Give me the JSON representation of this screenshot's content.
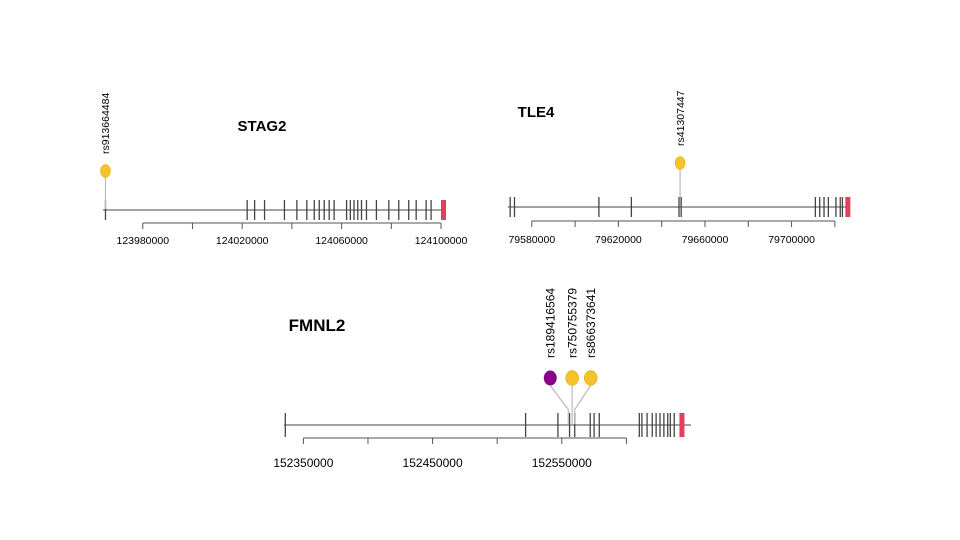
{
  "colors": {
    "exon": "#444444",
    "backbone": "#444444",
    "terminal_exon": "#e0405e",
    "snp_yellow": "#f5c22a",
    "snp_purple": "#8b008b",
    "stem": "#bbbbbb",
    "axis": "#555555"
  },
  "genes": [
    {
      "id": "stag2",
      "name": "STAG2",
      "range": [
        123964000,
        124102000
      ],
      "tick_values": [
        123980000,
        124000000,
        124020000,
        124040000,
        124060000,
        124080000,
        124100000
      ],
      "tick_labels": [
        "123980000",
        "",
        "124020000",
        "",
        "124060000",
        "",
        "124100000"
      ],
      "exons": [
        123965000,
        124022000,
        124025000,
        124029000,
        124037000,
        124042000,
        124046000,
        124049000,
        124051000,
        124053000,
        124055000,
        124057000,
        124062000,
        124063500,
        124065000,
        124066500,
        124068000,
        124070000,
        124074000,
        124079000,
        124083000,
        124087000,
        124090000,
        124094000,
        124096000
      ],
      "terminal_exon": 124101000,
      "snps": [
        {
          "id": "rs913664484",
          "pos": 123965000,
          "color": "yellow"
        }
      ]
    },
    {
      "id": "tle4",
      "name": "TLE4",
      "range": [
        79569000,
        79727000
      ],
      "tick_values": [
        79580000,
        79600000,
        79620000,
        79640000,
        79660000,
        79680000,
        79700000,
        79720000
      ],
      "tick_labels": [
        "79580000",
        "",
        "79620000",
        "",
        "79660000",
        "",
        "79700000",
        ""
      ],
      "exons": [
        79570000,
        79572000,
        79611000,
        79626000,
        79648000,
        79649000,
        79711000,
        79713000,
        79715000,
        79717000,
        79720500,
        79722500,
        79723500
      ],
      "terminal_exon": 79726000,
      "snps": [
        {
          "id": "rs41307447",
          "pos": 79648500,
          "color": "yellow"
        }
      ]
    },
    {
      "id": "fmnl2",
      "name": "FMNL2",
      "range": [
        152335000,
        152650000
      ],
      "tick_values": [
        152350000,
        152400000,
        152450000,
        152500000,
        152550000,
        152600000
      ],
      "tick_labels": [
        "152350000",
        "",
        "152450000",
        "",
        "152550000",
        ""
      ],
      "exons": [
        152336000,
        152522000,
        152547000,
        152556000,
        152560000,
        152572000,
        152575000,
        152579000,
        152610000,
        152612000,
        152616000,
        152620000,
        152623000,
        152626000,
        152629000,
        152632000,
        152634000,
        152637000
      ],
      "terminal_exon": 152643000,
      "snps": [
        {
          "id": "rs189416564",
          "pos": 152555000,
          "color": "purple"
        },
        {
          "id": "rs750755379",
          "pos": 152558000,
          "color": "yellow"
        },
        {
          "id": "rs866373641",
          "pos": 152560000,
          "color": "yellow"
        }
      ]
    }
  ]
}
